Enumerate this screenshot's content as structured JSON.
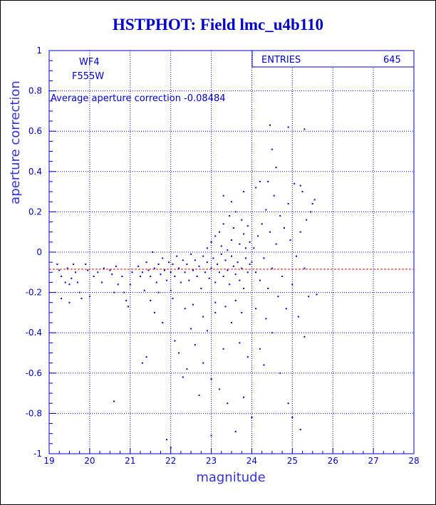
{
  "chart_data": {
    "type": "scatter",
    "title": "HSTPHOT: Field lmc_u4b110",
    "xlabel": "magnitude",
    "ylabel": "aperture correction",
    "xlim": [
      19,
      28
    ],
    "ylim": [
      -1,
      1
    ],
    "x_ticks": [
      "19",
      "20",
      "21",
      "22",
      "23",
      "24",
      "25",
      "26",
      "27",
      "28"
    ],
    "y_ticks": [
      "1",
      "0.8",
      "0.6",
      "0.4",
      "0.2",
      "0",
      "-0.2",
      "-0.4",
      "-0.6",
      "-0.8",
      "-1"
    ],
    "grid": true,
    "chip": "WF4",
    "filter": "F555W",
    "average_text": "Average aperture correction  -0.08484",
    "average_value": -0.08484,
    "stats_label": "ENTRIES",
    "stats_value": "645",
    "colors": {
      "points": "#0000cc",
      "grid": "#0000cc",
      "average_line": "#ff0000",
      "title": "#0000cc"
    },
    "points": [
      [
        19.2,
        -0.06
      ],
      [
        19.25,
        -0.09
      ],
      [
        19.3,
        -0.12
      ],
      [
        19.3,
        -0.23
      ],
      [
        19.4,
        -0.15
      ],
      [
        19.45,
        -0.08
      ],
      [
        19.5,
        -0.16
      ],
      [
        19.5,
        -0.25
      ],
      [
        19.55,
        -0.13
      ],
      [
        19.6,
        -0.06
      ],
      [
        19.65,
        -0.1
      ],
      [
        19.7,
        -0.15
      ],
      [
        19.75,
        -0.2
      ],
      [
        19.8,
        -0.23
      ],
      [
        19.9,
        -0.06
      ],
      [
        19.95,
        -0.09
      ],
      [
        20.0,
        -0.22
      ],
      [
        20.1,
        -0.12
      ],
      [
        20.2,
        -0.1
      ],
      [
        20.3,
        -0.15
      ],
      [
        20.35,
        -0.08
      ],
      [
        20.5,
        -0.09
      ],
      [
        20.55,
        -0.11
      ],
      [
        20.6,
        -0.2
      ],
      [
        20.65,
        -0.07
      ],
      [
        20.7,
        -0.16
      ],
      [
        20.8,
        -0.12
      ],
      [
        20.85,
        -0.2
      ],
      [
        20.9,
        -0.24
      ],
      [
        20.95,
        -0.27
      ],
      [
        21.0,
        -0.16
      ],
      [
        21.05,
        -0.1
      ],
      [
        20.6,
        -0.74
      ],
      [
        21.2,
        -0.07
      ],
      [
        21.25,
        -0.12
      ],
      [
        21.3,
        -0.1
      ],
      [
        21.35,
        -0.19
      ],
      [
        21.4,
        -0.05
      ],
      [
        21.45,
        -0.09
      ],
      [
        21.5,
        -0.12
      ],
      [
        21.5,
        -0.24
      ],
      [
        21.55,
        -0.0
      ],
      [
        21.6,
        -0.08
      ],
      [
        21.65,
        -0.15
      ],
      [
        21.7,
        -0.06
      ],
      [
        21.7,
        -0.2
      ],
      [
        21.75,
        -0.11
      ],
      [
        21.8,
        -0.03
      ],
      [
        21.85,
        -0.09
      ],
      [
        21.9,
        -0.14
      ],
      [
        21.95,
        -0.05
      ],
      [
        22.0,
        -0.1
      ],
      [
        22.0,
        -0.19
      ],
      [
        22.05,
        -0.06
      ],
      [
        22.1,
        -0.12
      ],
      [
        22.15,
        -0.02
      ],
      [
        22.2,
        -0.08
      ],
      [
        22.25,
        -0.15
      ],
      [
        22.3,
        -0.04
      ],
      [
        22.35,
        -0.1
      ],
      [
        22.4,
        -0.06
      ],
      [
        22.45,
        -0.14
      ],
      [
        22.5,
        -0.01
      ],
      [
        22.55,
        -0.09
      ],
      [
        22.6,
        -0.04
      ],
      [
        22.65,
        -0.12
      ],
      [
        22.7,
        -0.07
      ],
      [
        22.75,
        -0.18
      ],
      [
        22.8,
        -0.02
      ],
      [
        22.85,
        -0.1
      ],
      [
        22.9,
        -0.05
      ],
      [
        22.95,
        -0.13
      ],
      [
        23.0,
        -0.08
      ],
      [
        23.05,
        -0.03
      ],
      [
        23.1,
        -0.15
      ],
      [
        23.15,
        -0.06
      ],
      [
        23.2,
        -0.1
      ],
      [
        23.25,
        -0.01
      ],
      [
        23.3,
        -0.12
      ],
      [
        23.35,
        -0.04
      ],
      [
        23.4,
        -0.09
      ],
      [
        23.45,
        -0.16
      ],
      [
        23.5,
        -0.02
      ],
      [
        23.55,
        -0.07
      ],
      [
        23.6,
        -0.11
      ],
      [
        23.65,
        -0.05
      ],
      [
        23.7,
        -0.14
      ],
      [
        23.75,
        -0.08
      ],
      [
        23.8,
        -0.18
      ],
      [
        23.85,
        -0.03
      ],
      [
        23.9,
        -0.1
      ],
      [
        23.95,
        -0.06
      ],
      [
        21.3,
        -0.55
      ],
      [
        21.4,
        -0.52
      ],
      [
        21.6,
        -0.3
      ],
      [
        21.8,
        -0.35
      ],
      [
        21.9,
        -0.93
      ],
      [
        22.1,
        -0.44
      ],
      [
        22.2,
        -0.5
      ],
      [
        22.3,
        -0.62
      ],
      [
        22.4,
        -0.58
      ],
      [
        22.5,
        -0.38
      ],
      [
        22.6,
        -0.46
      ],
      [
        22.7,
        -0.71
      ],
      [
        22.8,
        -0.55
      ],
      [
        22.9,
        -0.39
      ],
      [
        23.0,
        -0.63
      ],
      [
        23.0,
        -0.91
      ],
      [
        23.1,
        -0.3
      ],
      [
        23.2,
        -0.68
      ],
      [
        23.3,
        -0.48
      ],
      [
        23.4,
        -0.75
      ],
      [
        23.5,
        -0.35
      ],
      [
        23.6,
        -0.89
      ],
      [
        23.7,
        -0.45
      ],
      [
        23.8,
        -0.72
      ],
      [
        23.9,
        -0.52
      ],
      [
        22.0,
        -0.97
      ],
      [
        22.05,
        -0.23
      ],
      [
        22.35,
        -0.28
      ],
      [
        22.55,
        -0.26
      ],
      [
        22.8,
        -0.32
      ],
      [
        23.1,
        -0.25
      ],
      [
        23.35,
        -0.27
      ],
      [
        23.6,
        -0.24
      ],
      [
        23.75,
        -0.3
      ],
      [
        22.9,
        0.02
      ],
      [
        23.0,
        0.05
      ],
      [
        23.1,
        0.08
      ],
      [
        23.2,
        0.1
      ],
      [
        23.25,
        0.03
      ],
      [
        23.3,
        0.14
      ],
      [
        23.4,
        0.01
      ],
      [
        23.45,
        0.18
      ],
      [
        23.5,
        0.06
      ],
      [
        23.55,
        0.12
      ],
      [
        23.6,
        0.2
      ],
      [
        23.7,
        0.04
      ],
      [
        23.75,
        0.16
      ],
      [
        23.8,
        0.09
      ],
      [
        23.85,
        0.02
      ],
      [
        23.9,
        0.13
      ],
      [
        23.95,
        0.05
      ],
      [
        23.3,
        0.28
      ],
      [
        23.5,
        0.25
      ],
      [
        23.8,
        0.3
      ],
      [
        24.0,
        -0.05
      ],
      [
        24.05,
        0.02
      ],
      [
        24.1,
        -0.1
      ],
      [
        24.15,
        0.08
      ],
      [
        24.2,
        -0.14
      ],
      [
        24.25,
        0.14
      ],
      [
        24.3,
        -0.03
      ],
      [
        24.35,
        0.21
      ],
      [
        24.4,
        -0.18
      ],
      [
        24.45,
        0.1
      ],
      [
        24.5,
        -0.08
      ],
      [
        24.55,
        0.28
      ],
      [
        24.6,
        0.04
      ],
      [
        24.65,
        -0.22
      ],
      [
        24.7,
        0.18
      ],
      [
        24.75,
        -0.12
      ],
      [
        24.8,
        0.12
      ],
      [
        24.85,
        -0.28
      ],
      [
        24.9,
        0.24
      ],
      [
        24.95,
        0.06
      ],
      [
        25.0,
        -0.16
      ],
      [
        25.05,
        0.34
      ],
      [
        25.1,
        -0.02
      ],
      [
        25.15,
        -0.32
      ],
      [
        25.2,
        0.1
      ],
      [
        25.25,
        0.3
      ],
      [
        25.3,
        -0.08
      ],
      [
        25.35,
        0.16
      ],
      [
        25.4,
        -0.22
      ],
      [
        25.45,
        0.2
      ],
      [
        25.5,
        0.24
      ],
      [
        25.55,
        0.26
      ],
      [
        25.6,
        -0.21
      ],
      [
        24.1,
        0.32
      ],
      [
        24.2,
        0.35
      ],
      [
        24.4,
        0.35
      ],
      [
        24.6,
        0.42
      ],
      [
        24.5,
        0.51
      ],
      [
        24.45,
        0.63
      ],
      [
        24.9,
        0.62
      ],
      [
        25.3,
        0.61
      ],
      [
        25.2,
        0.33
      ],
      [
        25.3,
        -0.42
      ],
      [
        24.2,
        -0.48
      ],
      [
        24.3,
        -0.56
      ],
      [
        24.7,
        -0.6
      ],
      [
        24.9,
        -0.75
      ],
      [
        25.0,
        -0.82
      ],
      [
        25.2,
        -0.88
      ],
      [
        24.0,
        -0.82
      ],
      [
        24.5,
        -0.4
      ],
      [
        24.1,
        -0.28
      ],
      [
        24.35,
        -0.33
      ]
    ]
  }
}
